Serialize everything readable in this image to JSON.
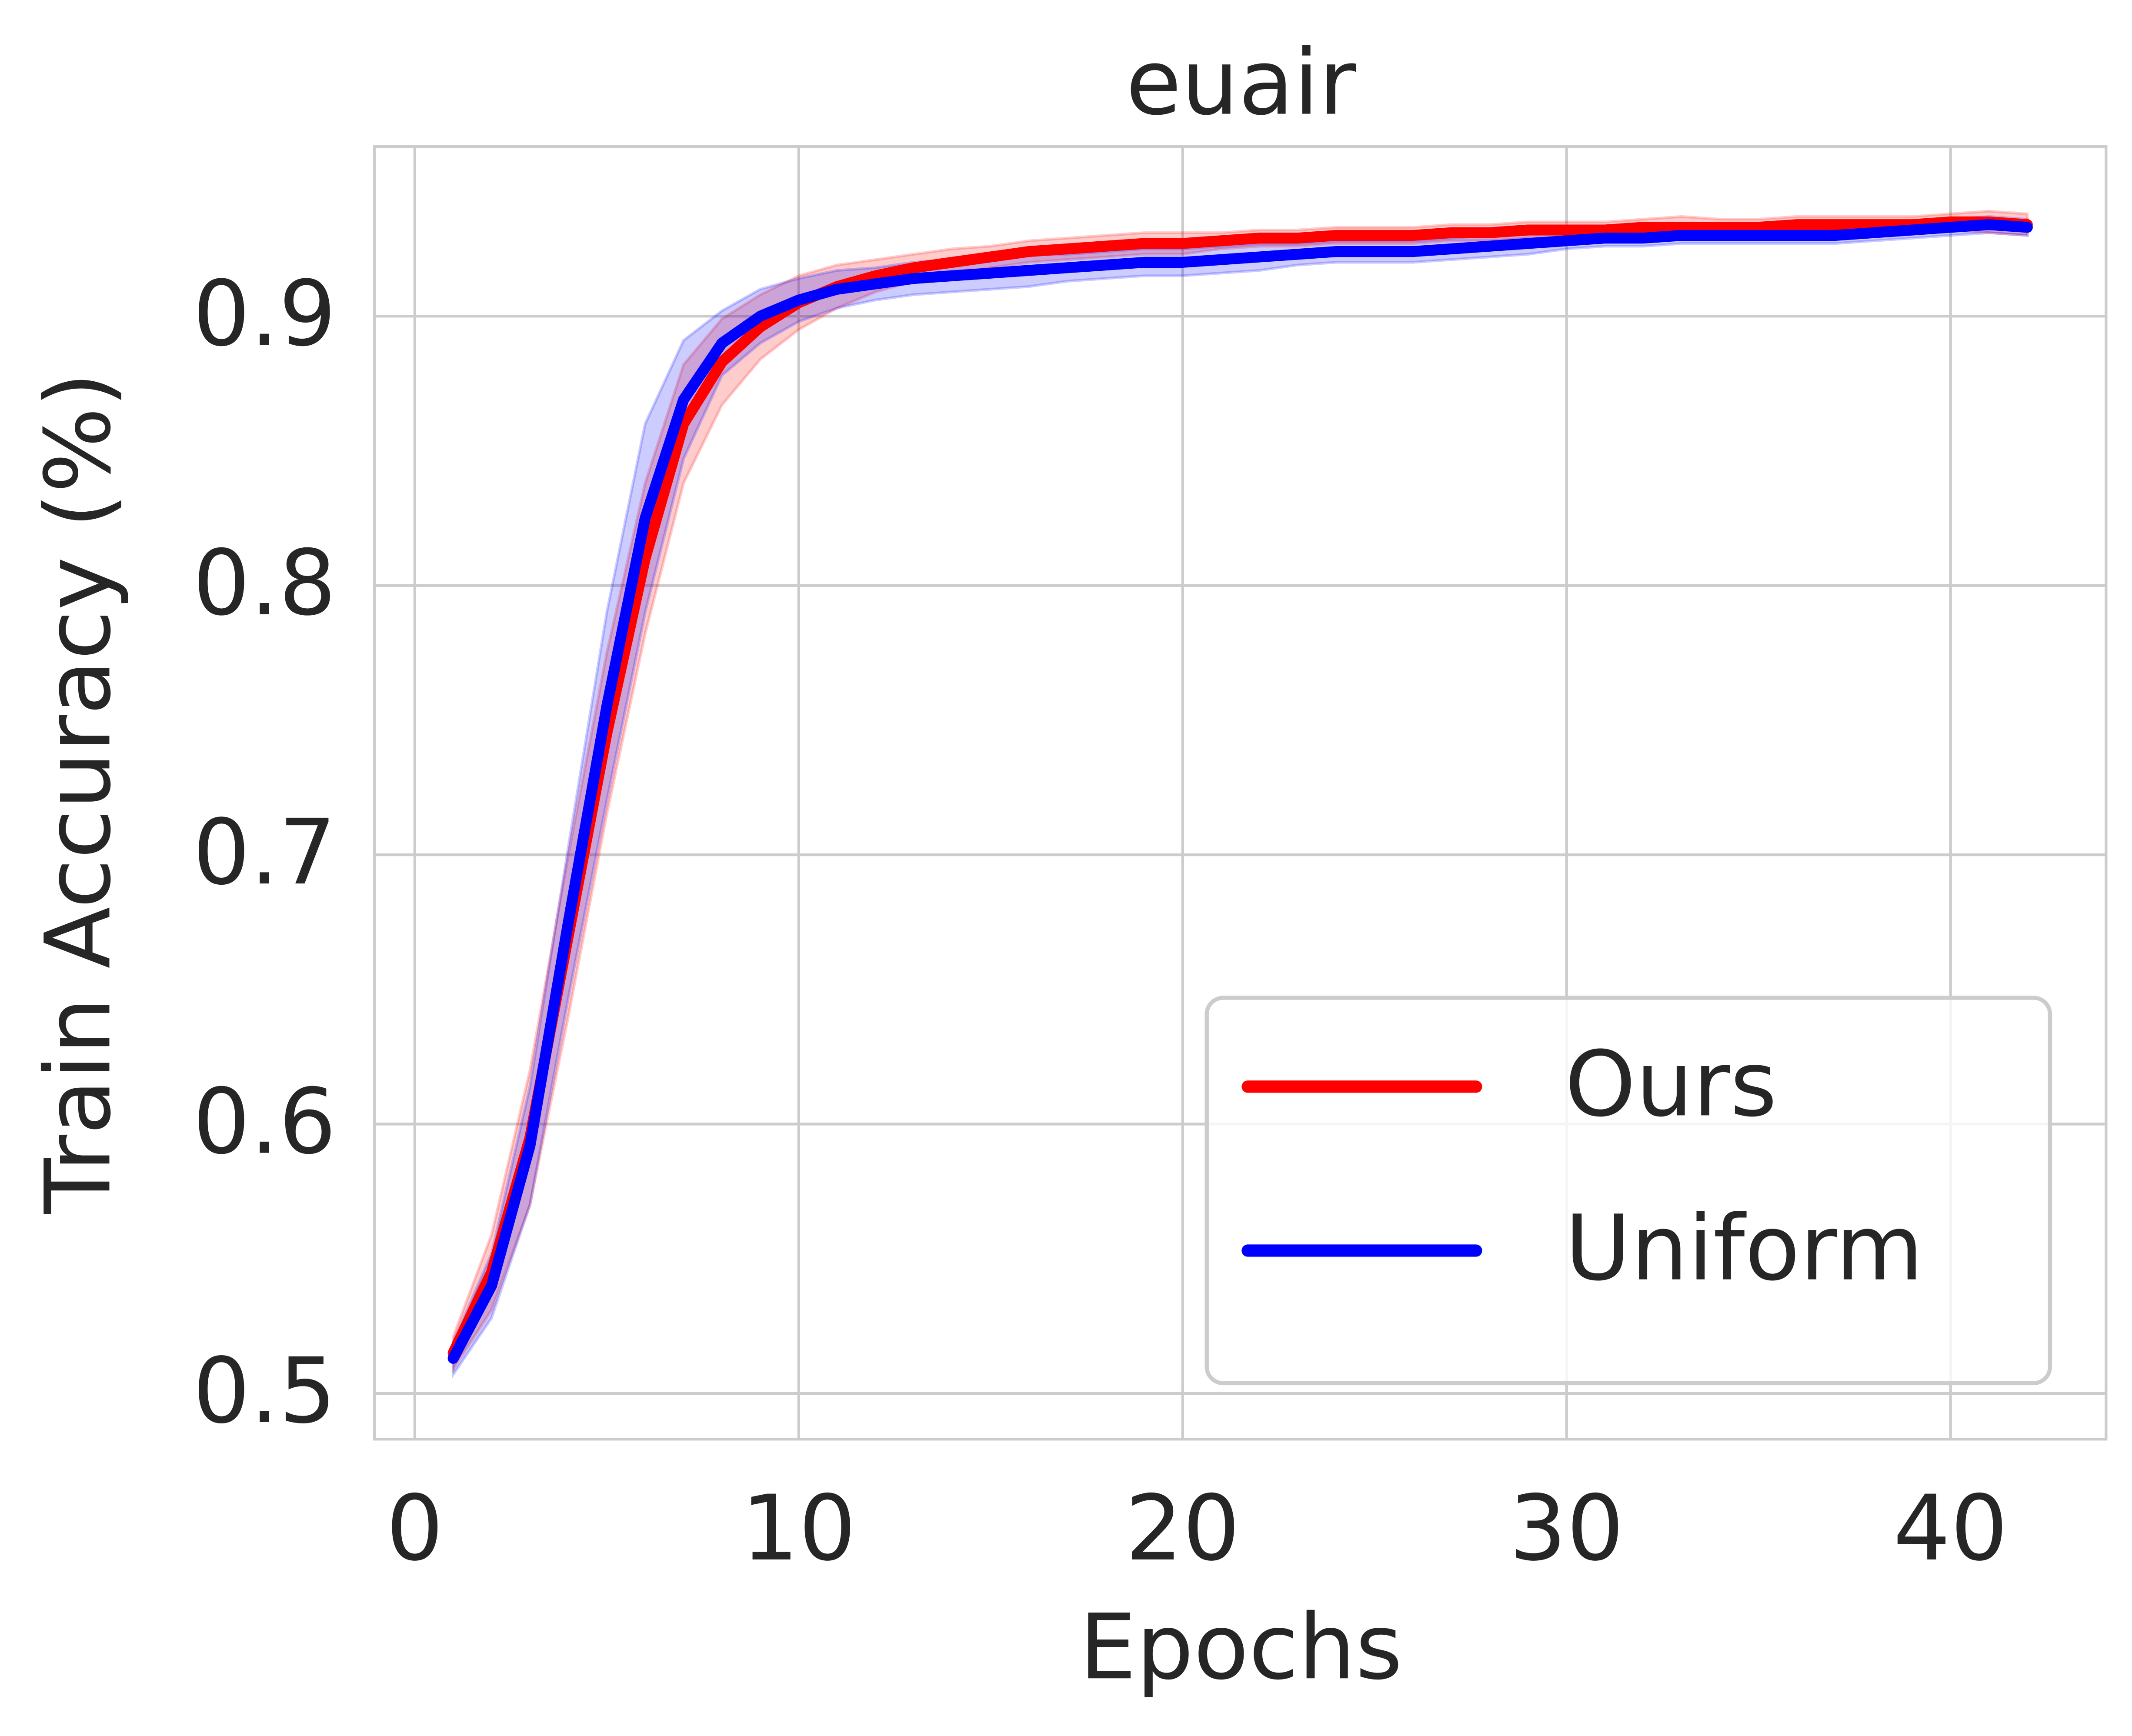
{
  "chart_data": {
    "type": "line",
    "title": "euair",
    "xlabel": "Epochs",
    "ylabel": "Train Accuracy (%)",
    "x": [
      1,
      2,
      3,
      4,
      5,
      6,
      7,
      8,
      9,
      10,
      11,
      12,
      13,
      14,
      15,
      16,
      17,
      18,
      19,
      20,
      21,
      22,
      23,
      24,
      25,
      26,
      27,
      28,
      29,
      30,
      31,
      32,
      33,
      34,
      35,
      36,
      37,
      38,
      39,
      40,
      41,
      42
    ],
    "series": [
      {
        "name": "Ours",
        "color": "#ff0000",
        "values": [
          0.515,
          0.545,
          0.595,
          0.67,
          0.745,
          0.81,
          0.86,
          0.883,
          0.896,
          0.905,
          0.911,
          0.915,
          0.918,
          0.92,
          0.922,
          0.924,
          0.925,
          0.926,
          0.927,
          0.927,
          0.928,
          0.929,
          0.929,
          0.93,
          0.93,
          0.93,
          0.931,
          0.931,
          0.932,
          0.932,
          0.932,
          0.933,
          0.933,
          0.933,
          0.933,
          0.934,
          0.934,
          0.934,
          0.934,
          0.935,
          0.935,
          0.934
        ],
        "errors": [
          0.006,
          0.014,
          0.025,
          0.03,
          0.03,
          0.028,
          0.022,
          0.016,
          0.012,
          0.01,
          0.008,
          0.006,
          0.005,
          0.005,
          0.004,
          0.004,
          0.004,
          0.004,
          0.004,
          0.004,
          0.003,
          0.003,
          0.003,
          0.003,
          0.003,
          0.003,
          0.003,
          0.003,
          0.003,
          0.003,
          0.003,
          0.003,
          0.004,
          0.003,
          0.003,
          0.003,
          0.003,
          0.003,
          0.003,
          0.003,
          0.004,
          0.004
        ]
      },
      {
        "name": "Uniform",
        "color": "#0000ff",
        "values": [
          0.513,
          0.54,
          0.592,
          0.675,
          0.755,
          0.825,
          0.869,
          0.89,
          0.9,
          0.906,
          0.91,
          0.912,
          0.914,
          0.915,
          0.916,
          0.917,
          0.918,
          0.919,
          0.92,
          0.92,
          0.921,
          0.922,
          0.923,
          0.924,
          0.924,
          0.924,
          0.925,
          0.926,
          0.927,
          0.928,
          0.929,
          0.929,
          0.93,
          0.93,
          0.93,
          0.93,
          0.93,
          0.931,
          0.932,
          0.933,
          0.934,
          0.933
        ],
        "errors": [
          0.006,
          0.012,
          0.022,
          0.028,
          0.035,
          0.035,
          0.022,
          0.012,
          0.01,
          0.008,
          0.007,
          0.006,
          0.006,
          0.006,
          0.006,
          0.006,
          0.005,
          0.005,
          0.005,
          0.005,
          0.005,
          0.005,
          0.004,
          0.004,
          0.004,
          0.004,
          0.004,
          0.004,
          0.004,
          0.003,
          0.003,
          0.003,
          0.003,
          0.003,
          0.003,
          0.003,
          0.003,
          0.003,
          0.003,
          0.003,
          0.003,
          0.003
        ]
      }
    ],
    "xlim": [
      -1.05,
      44.05
    ],
    "ylim": [
      0.483,
      0.963
    ],
    "xticks": [
      0,
      10,
      20,
      30,
      40
    ],
    "yticks": [
      0.5,
      0.6,
      0.7,
      0.8,
      0.9
    ],
    "grid": true,
    "legend": "lower right"
  }
}
